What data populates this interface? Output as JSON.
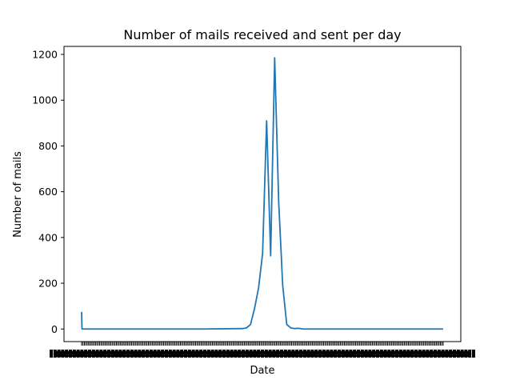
{
  "chart_data": {
    "type": "line",
    "title": "Number of mails received and sent per day",
    "xlabel": "Date",
    "ylabel": "Number of mails",
    "ylim": [
      -55,
      1235
    ],
    "yticks": [
      0,
      200,
      400,
      600,
      800,
      1000,
      1200
    ],
    "grid": false,
    "legend": "none",
    "x_tick_labels_legible": false,
    "x": [
      0,
      1,
      2,
      100,
      200,
      300,
      400,
      410,
      420,
      430,
      440,
      450,
      460,
      470,
      480,
      490,
      500,
      510,
      520,
      530,
      540,
      550,
      560,
      600,
      700,
      800,
      899
    ],
    "series": [
      {
        "color": "#1f77b4",
        "values": [
          75,
          0,
          0,
          0,
          0,
          0,
          2,
          5,
          20,
          90,
          180,
          330,
          910,
          320,
          1185,
          555,
          190,
          20,
          5,
          2,
          3,
          0,
          0,
          0,
          0,
          0,
          0
        ]
      }
    ]
  }
}
